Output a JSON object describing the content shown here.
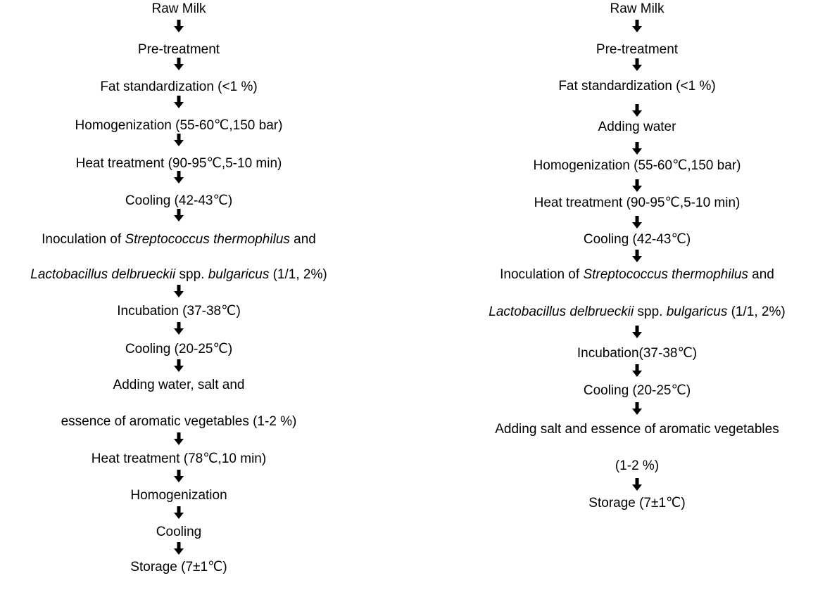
{
  "left_flow": {
    "steps": [
      {
        "parts": [
          {
            "text": "Raw Milk"
          }
        ]
      },
      {
        "parts": [
          {
            "text": "Pre-treatment"
          }
        ]
      },
      {
        "parts": [
          {
            "text": "Fat standardization (<1 %)"
          }
        ]
      },
      {
        "parts": [
          {
            "text": "Homogenization (55-60℃,150 bar)"
          }
        ]
      },
      {
        "parts": [
          {
            "text": "Heat treatment (90-95℃,5-10 min)"
          }
        ]
      },
      {
        "parts": [
          {
            "text": "Cooling (42-43℃)"
          }
        ]
      },
      {
        "parts": [
          {
            "text": "Inoculation of "
          },
          {
            "text": "Streptococcus thermophilus",
            "italic": true
          },
          {
            "text": " and"
          }
        ]
      },
      {
        "parts": [
          {
            "text": "Lactobacillus delbrueckii",
            "italic": true
          },
          {
            "text": " spp. "
          },
          {
            "text": "bulgaricus",
            "italic": true
          },
          {
            "text": " (1/1, 2%)"
          }
        ]
      },
      {
        "parts": [
          {
            "text": "Incubation (37-38℃)"
          }
        ]
      },
      {
        "parts": [
          {
            "text": "Cooling (20-25℃)"
          }
        ]
      },
      {
        "parts": [
          {
            "text": "Adding water, salt and"
          }
        ]
      },
      {
        "parts": [
          {
            "text": "essence of aromatic vegetables (1-2 %)"
          }
        ]
      },
      {
        "parts": [
          {
            "text": "Heat treatment (78℃,10 min)"
          }
        ]
      },
      {
        "parts": [
          {
            "text": "Homogenization"
          }
        ]
      },
      {
        "parts": [
          {
            "text": "Cooling"
          }
        ]
      },
      {
        "parts": [
          {
            "text": "Storage (7±1℃)"
          }
        ]
      }
    ]
  },
  "right_flow": {
    "steps": [
      {
        "parts": [
          {
            "text": "Raw Milk"
          }
        ]
      },
      {
        "parts": [
          {
            "text": "Pre-treatment"
          }
        ]
      },
      {
        "parts": [
          {
            "text": "Fat standardization (<1 %)"
          }
        ]
      },
      {
        "parts": [
          {
            "text": "Adding water"
          }
        ]
      },
      {
        "parts": [
          {
            "text": "Homogenization (55-60℃,150 bar)"
          }
        ]
      },
      {
        "parts": [
          {
            "text": "Heat treatment (90-95℃,5-10 min)"
          }
        ]
      },
      {
        "parts": [
          {
            "text": "Cooling (42-43℃)"
          }
        ]
      },
      {
        "parts": [
          {
            "text": "Inoculation of "
          },
          {
            "text": "Streptococcus thermophilus",
            "italic": true
          },
          {
            "text": " and"
          }
        ]
      },
      {
        "parts": [
          {
            "text": "Lactobacillus delbrueckii",
            "italic": true
          },
          {
            "text": " spp. "
          },
          {
            "text": "bulgaricus",
            "italic": true
          },
          {
            "text": " (1/1, 2%)"
          }
        ]
      },
      {
        "parts": [
          {
            "text": "Incubation(37-38℃)"
          }
        ]
      },
      {
        "parts": [
          {
            "text": "Cooling (20-25℃)"
          }
        ]
      },
      {
        "parts": [
          {
            "text": "Adding salt and  essence of aromatic vegetables"
          }
        ]
      },
      {
        "parts": [
          {
            "text": "(1-2 %)"
          }
        ]
      },
      {
        "parts": [
          {
            "text": "Storage (7±1℃)"
          }
        ]
      }
    ]
  }
}
